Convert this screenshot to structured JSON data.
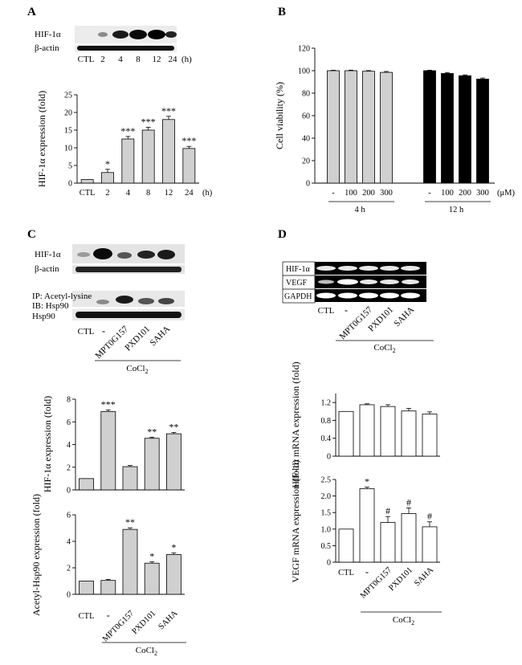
{
  "panels": {
    "A": {
      "letter": "A",
      "blot": {
        "bands": [
          "HIF-1α",
          "β-actin"
        ],
        "lanes": [
          "CTL",
          "2",
          "4",
          "8",
          "12",
          "24"
        ],
        "unit": "(h)"
      }
    },
    "B": {
      "letter": "B"
    },
    "C": {
      "letter": "C",
      "blot": {
        "bands": [
          "HIF-1α",
          "β-actin"
        ],
        "ip_label": "IP: Acetyl-lysine",
        "ib_label": "IB: Hsp90",
        "hsp_label": "Hsp90",
        "lanes": [
          "CTL",
          "-",
          "MPT0G157",
          "PXD101",
          "SAHA"
        ],
        "treatment": "CoCl2"
      }
    },
    "D": {
      "letter": "D",
      "gel": {
        "bands": [
          "HIF-1α",
          "VEGF",
          "GAPDH"
        ],
        "lanes": [
          "CTL",
          "-",
          "MPT0G157",
          "PXD101",
          "SAHA"
        ],
        "treatment": "CoCl2"
      }
    }
  },
  "chart_data": [
    {
      "id": "A",
      "type": "bar",
      "categories": [
        "CTL",
        "2",
        "4",
        "8",
        "12",
        "24"
      ],
      "xunit": "(h)",
      "values": [
        1.0,
        3.0,
        12.5,
        15.0,
        18.0,
        9.8
      ],
      "errors": [
        0.0,
        0.9,
        0.7,
        0.8,
        0.9,
        0.6
      ],
      "annotations": [
        "",
        "*",
        "***",
        "***",
        "***",
        "***"
      ],
      "ylabel": "HIF-1α expression (fold)",
      "ylim": [
        0,
        25
      ],
      "yticks": [
        0,
        5,
        10,
        15,
        20,
        25
      ],
      "bar_color": "#d0d0d0"
    },
    {
      "id": "B",
      "type": "bar",
      "groups": [
        {
          "label": "4 h",
          "categories": [
            "-",
            "100",
            "200",
            "300"
          ],
          "values": [
            100,
            100,
            99.5,
            98.5
          ],
          "errors": [
            0.4,
            0.5,
            0.6,
            0.8
          ],
          "color": "#d0d0d0"
        },
        {
          "label": "12 h",
          "categories": [
            "-",
            "100",
            "200",
            "300"
          ],
          "values": [
            100,
            97.5,
            95.5,
            92.5
          ],
          "errors": [
            0.4,
            0.9,
            0.8,
            1.0
          ],
          "color": "#000000"
        }
      ],
      "xunit": "(μM)",
      "ylabel": "Cell viability (%)",
      "ylim": [
        0,
        120
      ],
      "yticks": [
        0,
        20,
        40,
        60,
        80,
        100,
        120
      ]
    },
    {
      "id": "C1",
      "type": "bar",
      "categories": [
        "CTL",
        "-",
        "MPT0G157",
        "PXD101",
        "SAHA"
      ],
      "values": [
        1.0,
        6.9,
        2.05,
        4.55,
        4.95
      ],
      "errors": [
        0.0,
        0.15,
        0.1,
        0.1,
        0.12
      ],
      "annotations": [
        "",
        "***",
        "",
        "**",
        "**"
      ],
      "ylabel": "HIF-1α expression (fold)",
      "ylim": [
        0,
        8
      ],
      "yticks": [
        0,
        2,
        4,
        6,
        8
      ],
      "bar_color": "#d0d0d0"
    },
    {
      "id": "C2",
      "type": "bar",
      "categories": [
        "CTL",
        "-",
        "MPT0G157",
        "PXD101",
        "SAHA"
      ],
      "values": [
        1.0,
        1.05,
        4.9,
        2.35,
        3.0
      ],
      "errors": [
        0.0,
        0.08,
        0.12,
        0.1,
        0.12
      ],
      "annotations": [
        "",
        "",
        "**",
        "*",
        "*"
      ],
      "ylabel": "Acetyl-Hsp90 expression (fold)",
      "ylim": [
        0,
        6
      ],
      "yticks": [
        0,
        2,
        4,
        6
      ],
      "bar_color": "#d0d0d0"
    },
    {
      "id": "D1",
      "type": "bar",
      "categories": [
        "CTL",
        "-",
        "MPT0G157",
        "PXD101",
        "SAHA"
      ],
      "values": [
        1.0,
        1.15,
        1.11,
        1.01,
        0.94
      ],
      "errors": [
        0.0,
        0.02,
        0.04,
        0.06,
        0.05
      ],
      "annotations": [
        "",
        "",
        "",
        "",
        ""
      ],
      "ylabel": "HIF-1α mRNA expression (fold)",
      "ylim": [
        0,
        1.4
      ],
      "yticks": [
        0,
        0.4,
        0.8,
        1.2
      ],
      "bar_color": "#ffffff"
    },
    {
      "id": "D2",
      "type": "bar",
      "categories": [
        "CTL",
        "-",
        "MPT0G157",
        "PXD101",
        "SAHA"
      ],
      "values": [
        1.0,
        2.22,
        1.2,
        1.47,
        1.07
      ],
      "errors": [
        0.0,
        0.05,
        0.18,
        0.17,
        0.15
      ],
      "annotations": [
        "",
        "*",
        "#",
        "#",
        "#"
      ],
      "ylabel": "VEGF mRNA expression (fold)",
      "ylim": [
        0,
        2.5
      ],
      "yticks": [
        0,
        0.5,
        1.0,
        1.5,
        2.0,
        2.5
      ],
      "bar_color": "#ffffff"
    }
  ]
}
